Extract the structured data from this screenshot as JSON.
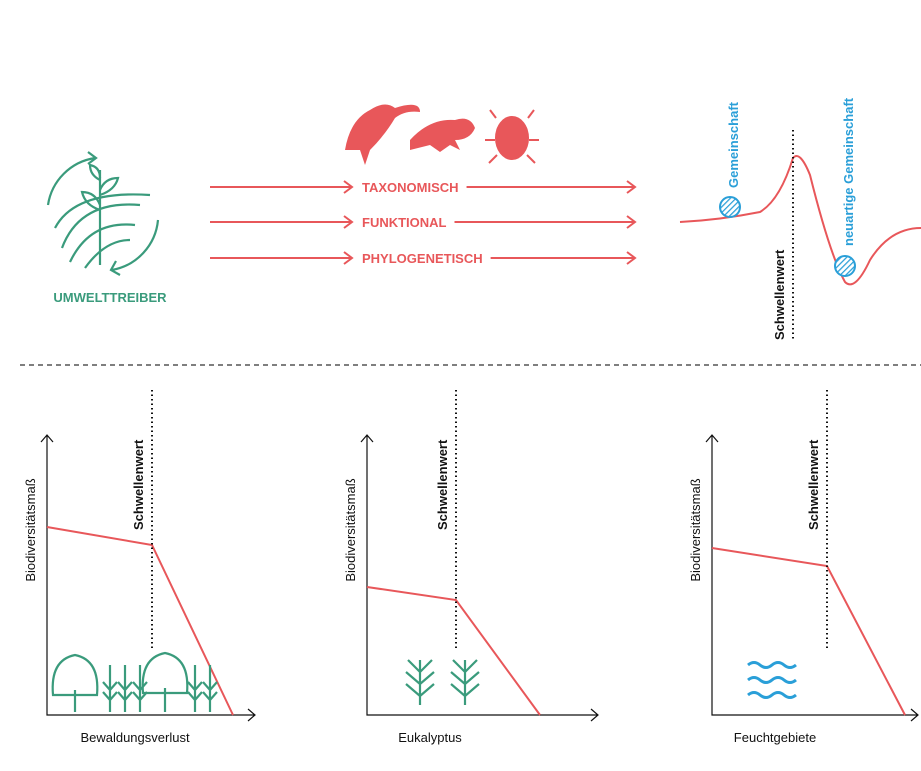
{
  "driver": {
    "label": "UMWELTTREIBER"
  },
  "dimensions": [
    "TAXONOMISCH",
    "FUNKTIONAL",
    "PHYLOGENETISCH"
  ],
  "landscape": {
    "community": "Gemeinschaft",
    "novel_community": "neuartige Gemeinschaft",
    "threshold": "Schwellenwert"
  },
  "panels": [
    {
      "y_label": "Biodiversitätsmaß",
      "threshold": "Schwellenwert",
      "x_label": "Bewaldungsverlust"
    },
    {
      "y_label": "Biodiversitätsmaß",
      "threshold": "Schwellenwert",
      "x_label": "Eukalyptus"
    },
    {
      "y_label": "Biodiversitätsmaß",
      "threshold": "Schwellenwert",
      "x_label": "Feuchtgebiete"
    }
  ]
}
